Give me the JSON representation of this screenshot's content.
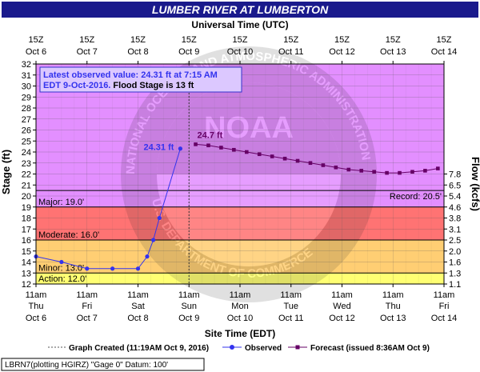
{
  "chart_data": {
    "type": "line",
    "title": "LUMBER RIVER AT LUMBERTON",
    "top_axis_title": "Universal Time (UTC)",
    "xlabel": "Site Time (EDT)",
    "ylabel": "Stage (ft)",
    "ylabel_right": "Flow (kcfs)",
    "ylim": [
      12,
      32
    ],
    "yticks": [
      12,
      13,
      14,
      15,
      16,
      17,
      18,
      19,
      20,
      21,
      22,
      23,
      24,
      25,
      26,
      27,
      28,
      29,
      30,
      31,
      32
    ],
    "right_ticks": [
      {
        "stage": 12,
        "label": "1.1"
      },
      {
        "stage": 13,
        "label": "1.3"
      },
      {
        "stage": 14,
        "label": "1.6"
      },
      {
        "stage": 15,
        "label": "2.0"
      },
      {
        "stage": 16,
        "label": "2.5"
      },
      {
        "stage": 17,
        "label": "3.1"
      },
      {
        "stage": 18,
        "label": "3.8"
      },
      {
        "stage": 19,
        "label": "4.6"
      },
      {
        "stage": 20,
        "label": "5.4"
      },
      {
        "stage": 21,
        "label": "6.5"
      },
      {
        "stage": 22,
        "label": "7.8"
      }
    ],
    "bottom_ticks": [
      {
        "d": "Thu",
        "l1": "11am",
        "l3": "Oct 6"
      },
      {
        "d": "Fri",
        "l1": "11am",
        "l3": "Oct 7"
      },
      {
        "d": "Sat",
        "l1": "11am",
        "l3": "Oct 8"
      },
      {
        "d": "Sun",
        "l1": "11am",
        "l3": "Oct 9"
      },
      {
        "d": "Mon",
        "l1": "11am",
        "l3": "Oct 10"
      },
      {
        "d": "Tue",
        "l1": "11am",
        "l3": "Oct 11"
      },
      {
        "d": "Wed",
        "l1": "11am",
        "l3": "Oct 12"
      },
      {
        "d": "Thu",
        "l1": "11am",
        "l3": "Oct 13"
      },
      {
        "d": "Fri",
        "l1": "11am",
        "l3": "Oct 14"
      }
    ],
    "top_ticks": [
      {
        "l1": "15Z",
        "l2": "Oct 6"
      },
      {
        "l1": "15Z",
        "l2": "Oct 7"
      },
      {
        "l1": "15Z",
        "l2": "Oct 8"
      },
      {
        "l1": "15Z",
        "l2": "Oct 9"
      },
      {
        "l1": "15Z",
        "l2": "Oct 10"
      },
      {
        "l1": "15Z",
        "l2": "Oct 11"
      },
      {
        "l1": "15Z",
        "l2": "Oct 12"
      },
      {
        "l1": "15Z",
        "l2": "Oct 13"
      },
      {
        "l1": "15Z",
        "l2": "Oct 14"
      }
    ],
    "xlim_days": [
      0,
      8
    ],
    "flood_categories": [
      {
        "name": "Action",
        "label": "Action: 12.0'",
        "from": 12,
        "to": 13,
        "color": "#ffff00"
      },
      {
        "name": "Minor",
        "label": "Minor: 13.0'",
        "from": 13,
        "to": 16,
        "color": "#ffa500"
      },
      {
        "name": "Moderate",
        "label": "Moderate: 16.0'",
        "from": 16,
        "to": 19,
        "color": "#ff0000"
      },
      {
        "name": "Major",
        "label": "Major: 19.0'",
        "from": 19,
        "to": 32,
        "color": "#cc33ff"
      }
    ],
    "record": {
      "label": "Record: 20.5'",
      "value": 20.5
    },
    "graph_created_day": 3.0,
    "series": [
      {
        "name": "Observed",
        "color": "#3333ee",
        "points": [
          {
            "x": 0.0,
            "y": 14.5
          },
          {
            "x": 0.5,
            "y": 14.0
          },
          {
            "x": 1.0,
            "y": 13.4
          },
          {
            "x": 1.5,
            "y": 13.4
          },
          {
            "x": 2.0,
            "y": 13.4
          },
          {
            "x": 2.18,
            "y": 14.5
          },
          {
            "x": 2.3,
            "y": 16.0
          },
          {
            "x": 2.42,
            "y": 18.0
          },
          {
            "x": 2.83,
            "y": 24.31
          }
        ]
      },
      {
        "name": "Forecast (issued 8:36AM Oct 9)",
        "color": "#660066",
        "points": [
          {
            "x": 3.13,
            "y": 24.7
          },
          {
            "x": 3.38,
            "y": 24.6
          },
          {
            "x": 3.63,
            "y": 24.4
          },
          {
            "x": 3.88,
            "y": 24.2
          },
          {
            "x": 4.13,
            "y": 24.0
          },
          {
            "x": 4.38,
            "y": 23.8
          },
          {
            "x": 4.63,
            "y": 23.6
          },
          {
            "x": 4.88,
            "y": 23.4
          },
          {
            "x": 5.13,
            "y": 23.2
          },
          {
            "x": 5.38,
            "y": 23.0
          },
          {
            "x": 5.63,
            "y": 22.8
          },
          {
            "x": 5.88,
            "y": 22.6
          },
          {
            "x": 6.13,
            "y": 22.4
          },
          {
            "x": 6.38,
            "y": 22.3
          },
          {
            "x": 6.63,
            "y": 22.2
          },
          {
            "x": 6.88,
            "y": 22.1
          },
          {
            "x": 7.13,
            "y": 22.1
          },
          {
            "x": 7.38,
            "y": 22.2
          },
          {
            "x": 7.63,
            "y": 22.3
          },
          {
            "x": 7.88,
            "y": 22.5
          }
        ]
      }
    ],
    "observed_label": "24.31 ft",
    "forecast_label": "24.7 ft",
    "info_box": {
      "line1": "Latest observed value: 24.31 ft at 7:15 AM",
      "line2_part1": "EDT 9-Oct-2016.",
      "line2_part2": " Flood Stage is 13 ft"
    },
    "legend": {
      "graph_created": "Graph Created (11:19AM Oct 9, 2016)",
      "observed": "Observed",
      "forecast": "Forecast (issued 8:36AM Oct 9)"
    },
    "footer": "LBRN7(plotting HGIRZ) \"Gage 0\" Datum: 100'",
    "watermark": {
      "logo_text": "NOAA",
      "ring_text": "NATIONAL OCEANIC AND ATMOSPHERIC ADMINISTRATION",
      "ring_text2": "U.S. DEPARTMENT OF COMMERCE"
    }
  }
}
